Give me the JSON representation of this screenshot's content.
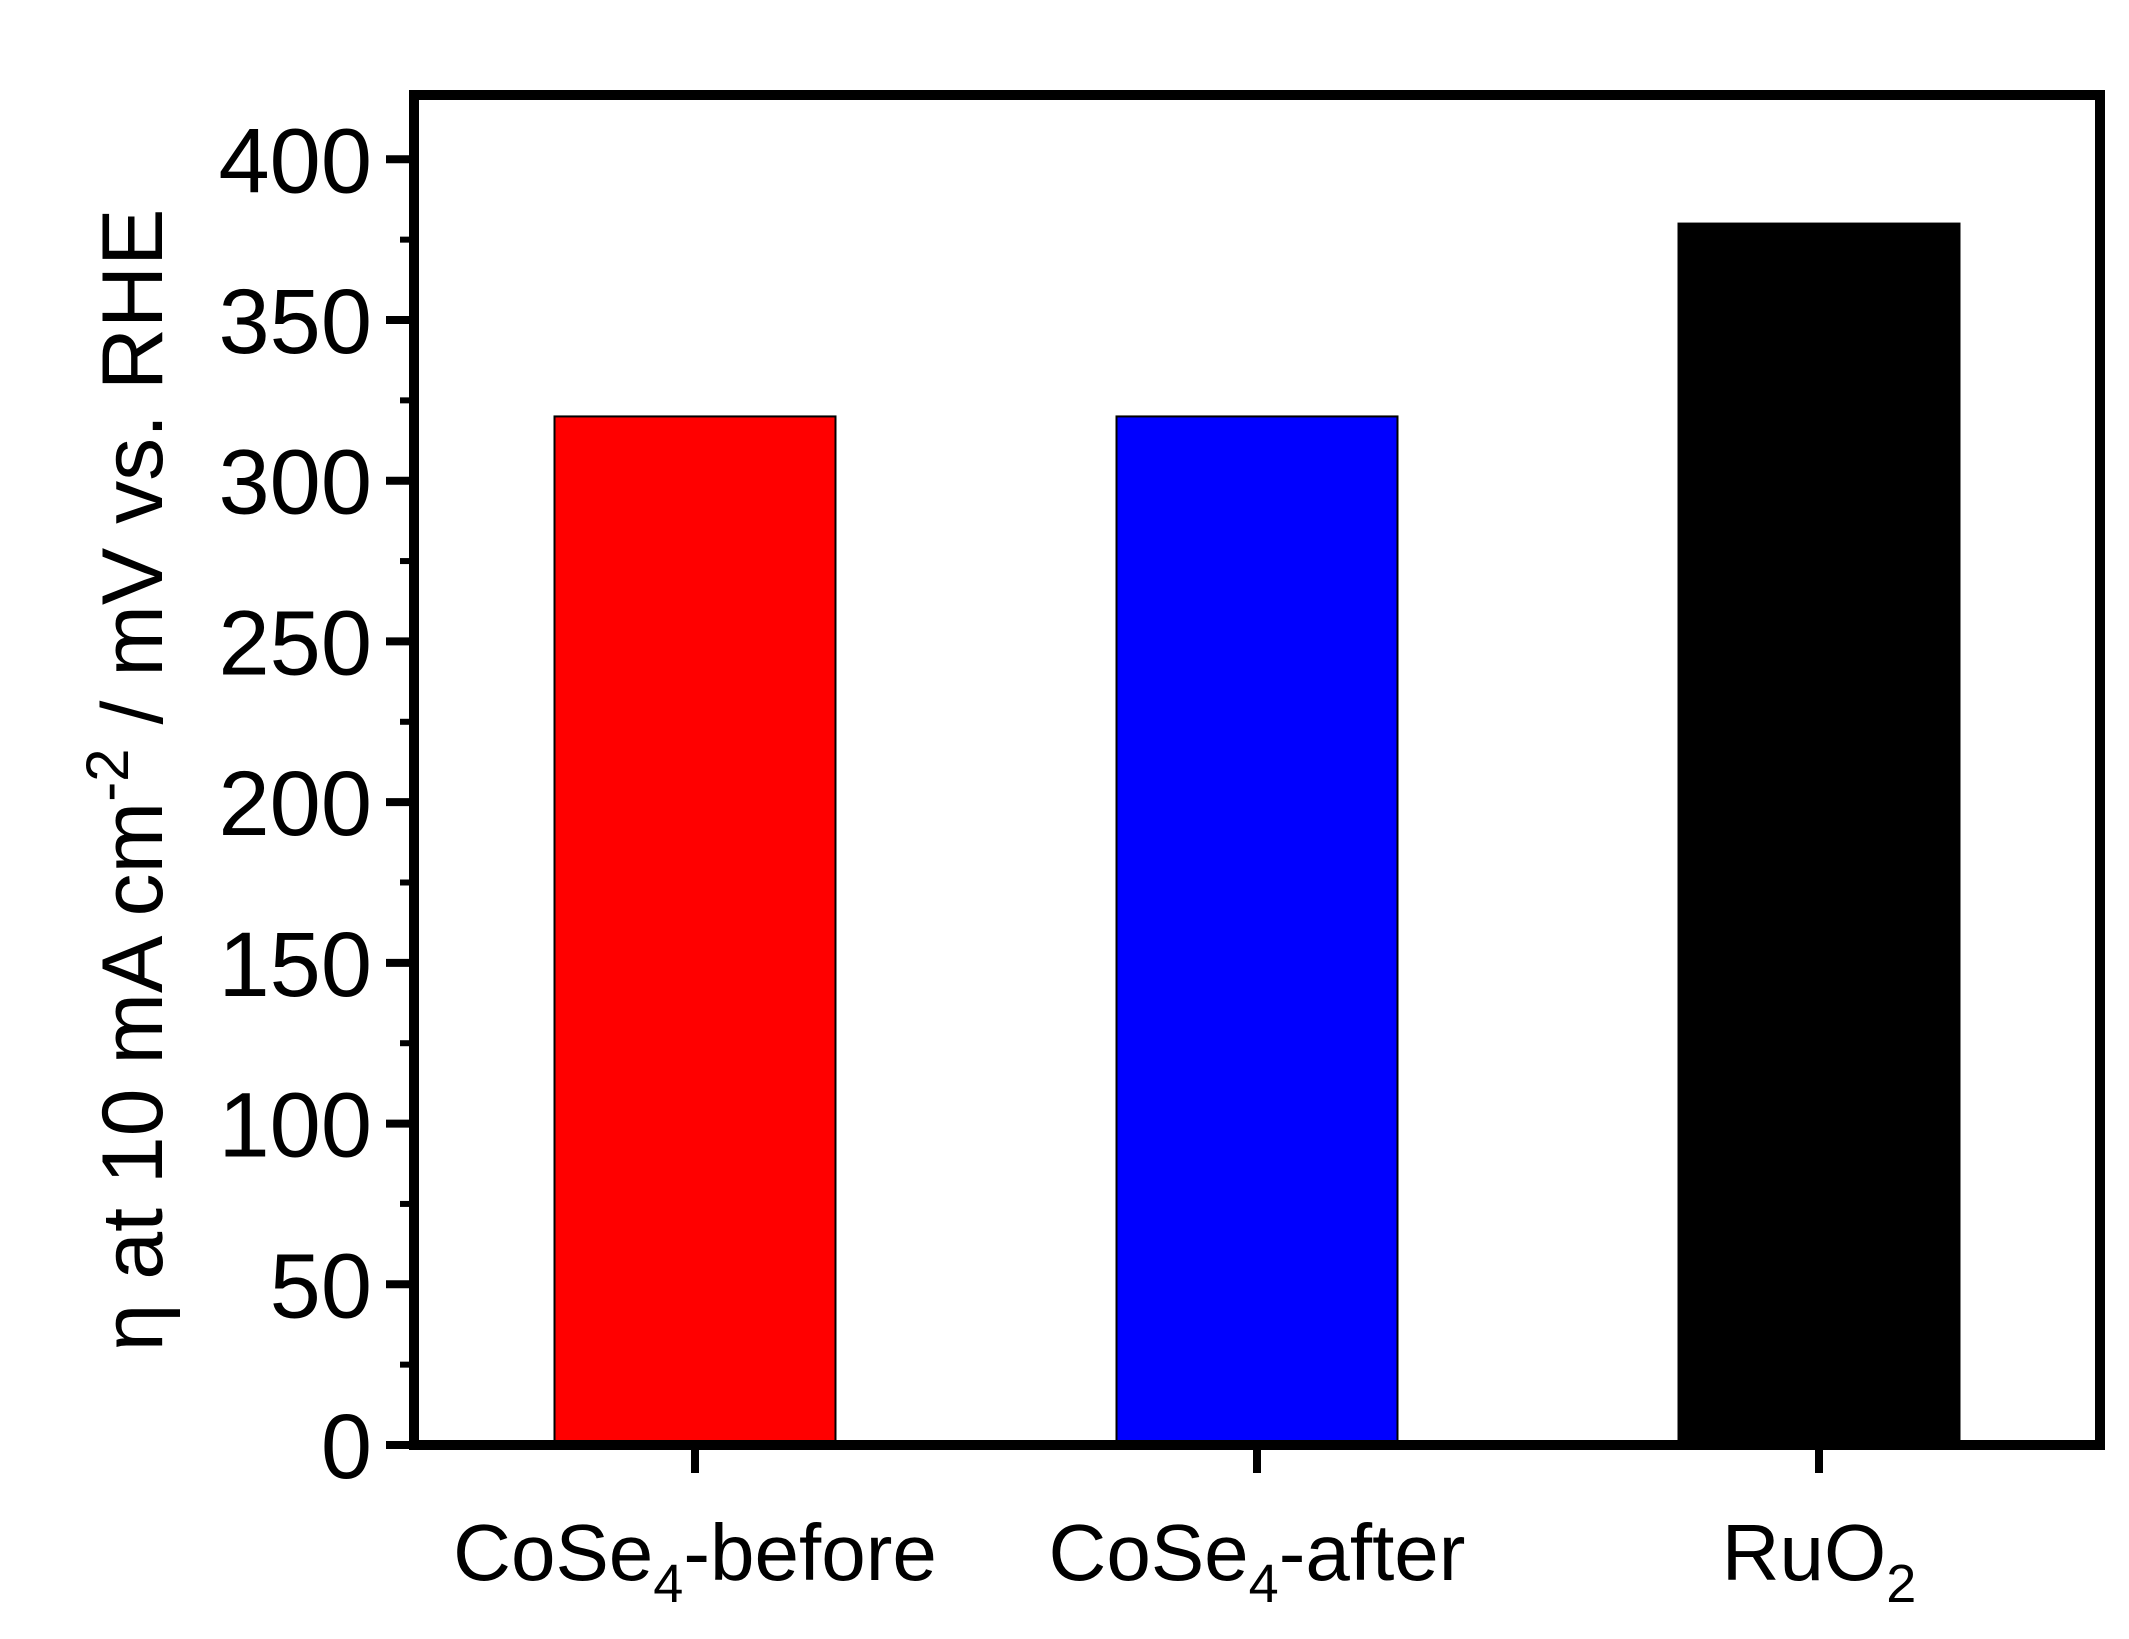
{
  "chart_data": {
    "type": "bar",
    "categories": [
      "CoSe4-before",
      "CoSe4-after",
      "RuO2"
    ],
    "category_labels": [
      {
        "base": "CoSe",
        "sub": "4",
        "suffix": "-before"
      },
      {
        "base": "CoSe",
        "sub": "4",
        "suffix": "-after"
      },
      {
        "base": "RuO",
        "sub": "2",
        "suffix": ""
      }
    ],
    "values": [
      320,
      320,
      380
    ],
    "colors": [
      "#ff0000",
      "#0000ff",
      "#000000"
    ],
    "title": "",
    "xlabel": "",
    "ylabel": {
      "prefix": "η at 10 mA cm",
      "superscript": "-2",
      "suffix": " / mV vs. RHE"
    },
    "ylim": [
      0,
      420
    ],
    "yticks": [
      0,
      50,
      100,
      150,
      200,
      250,
      300,
      350,
      400
    ],
    "grid": false,
    "legend": "none"
  }
}
